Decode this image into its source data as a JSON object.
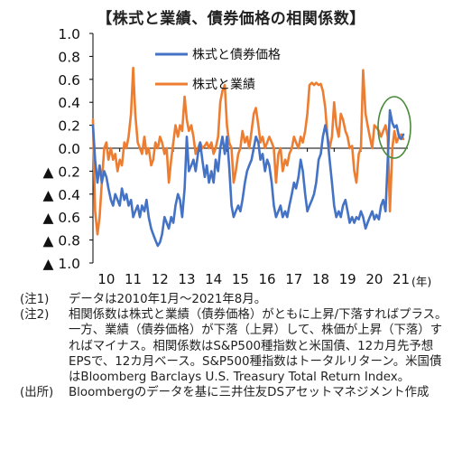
{
  "title": "【株式と業績、債券価格の相関係数】",
  "colors": {
    "bond_series": "#4472C4",
    "earnings_series": "#ED7D31",
    "highlight_circle": "#4A8A3C",
    "axis": "#000000"
  },
  "chart_data": {
    "type": "line",
    "title": "【株式と業績、債券価格の相関係数】",
    "xlabel": "",
    "x_unit": "(年)",
    "ylabel": "",
    "ylim": [
      -1.0,
      1.0
    ],
    "xlim": [
      2010,
      2021.75
    ],
    "grid": false,
    "legend_position": "top-right",
    "y_tick_labels": [
      "1.0",
      "0.8",
      "0.6",
      "0.4",
      "0.2",
      "0.0",
      "▲ 0.2",
      "▲ 0.4",
      "▲ 0.6",
      "▲ 0.8",
      "▲ 1.0"
    ],
    "y_tick_values": [
      1.0,
      0.8,
      0.6,
      0.4,
      0.2,
      0.0,
      -0.2,
      -0.4,
      -0.6,
      -0.8,
      -1.0
    ],
    "x_tick_labels": [
      "10",
      "11",
      "12",
      "13",
      "14",
      "15",
      "16",
      "17",
      "18",
      "19",
      "20",
      "21"
    ],
    "x_tick_values": [
      2010.5,
      2011.5,
      2012.5,
      2013.5,
      2014.5,
      2015.5,
      2016.5,
      2017.5,
      2018.5,
      2019.5,
      2020.5,
      2021.5
    ],
    "annotation": "2021年直近の値を楕円で強調",
    "series": [
      {
        "name": "株式と債券価格",
        "color": "#4472C4",
        "points": [
          [
            2010.0,
            0.2
          ],
          [
            2010.08,
            -0.1
          ],
          [
            2010.17,
            -0.3
          ],
          [
            2010.25,
            -0.15
          ],
          [
            2010.33,
            -0.3
          ],
          [
            2010.42,
            -0.2
          ],
          [
            2010.5,
            -0.25
          ],
          [
            2010.58,
            -0.35
          ],
          [
            2010.67,
            -0.45
          ],
          [
            2010.75,
            -0.5
          ],
          [
            2010.83,
            -0.4
          ],
          [
            2010.92,
            -0.45
          ],
          [
            2011.0,
            -0.5
          ],
          [
            2011.08,
            -0.35
          ],
          [
            2011.17,
            -0.45
          ],
          [
            2011.25,
            -0.4
          ],
          [
            2011.33,
            -0.5
          ],
          [
            2011.42,
            -0.45
          ],
          [
            2011.5,
            -0.6
          ],
          [
            2011.58,
            -0.55
          ],
          [
            2011.67,
            -0.5
          ],
          [
            2011.75,
            -0.6
          ],
          [
            2011.83,
            -0.5
          ],
          [
            2011.92,
            -0.55
          ],
          [
            2012.0,
            -0.45
          ],
          [
            2012.08,
            -0.6
          ],
          [
            2012.17,
            -0.7
          ],
          [
            2012.25,
            -0.75
          ],
          [
            2012.33,
            -0.8
          ],
          [
            2012.42,
            -0.85
          ],
          [
            2012.5,
            -0.82
          ],
          [
            2012.58,
            -0.75
          ],
          [
            2012.67,
            -0.6
          ],
          [
            2012.75,
            -0.65
          ],
          [
            2012.83,
            -0.7
          ],
          [
            2012.92,
            -0.6
          ],
          [
            2013.0,
            -0.65
          ],
          [
            2013.08,
            -0.5
          ],
          [
            2013.17,
            -0.4
          ],
          [
            2013.25,
            -0.45
          ],
          [
            2013.33,
            -0.6
          ],
          [
            2013.42,
            -0.35
          ],
          [
            2013.5,
            0.1
          ],
          [
            2013.58,
            -0.2
          ],
          [
            2013.67,
            -0.15
          ],
          [
            2013.75,
            -0.1
          ],
          [
            2013.83,
            -0.2
          ],
          [
            2013.92,
            -0.05
          ],
          [
            2014.0,
            0.05
          ],
          [
            2014.08,
            -0.1
          ],
          [
            2014.17,
            -0.25
          ],
          [
            2014.25,
            -0.15
          ],
          [
            2014.33,
            -0.3
          ],
          [
            2014.42,
            -0.2
          ],
          [
            2014.5,
            -0.3
          ],
          [
            2014.58,
            -0.1
          ],
          [
            2014.67,
            -0.2
          ],
          [
            2014.75,
            0.0
          ],
          [
            2014.83,
            0.1
          ],
          [
            2014.92,
            -0.05
          ],
          [
            2015.0,
            0.1
          ],
          [
            2015.08,
            -0.15
          ],
          [
            2015.17,
            -0.5
          ],
          [
            2015.25,
            -0.6
          ],
          [
            2015.33,
            -0.55
          ],
          [
            2015.42,
            -0.5
          ],
          [
            2015.5,
            -0.55
          ],
          [
            2015.58,
            -0.45
          ],
          [
            2015.67,
            -0.3
          ],
          [
            2015.75,
            -0.2
          ],
          [
            2015.83,
            -0.15
          ],
          [
            2015.92,
            -0.1
          ],
          [
            2016.0,
            0.0
          ],
          [
            2016.08,
            0.1
          ],
          [
            2016.17,
            0.05
          ],
          [
            2016.25,
            -0.1
          ],
          [
            2016.33,
            -0.05
          ],
          [
            2016.42,
            -0.2
          ],
          [
            2016.5,
            -0.1
          ],
          [
            2016.58,
            -0.15
          ],
          [
            2016.67,
            -0.3
          ],
          [
            2016.75,
            -0.5
          ],
          [
            2016.83,
            -0.6
          ],
          [
            2016.92,
            -0.55
          ],
          [
            2017.0,
            -0.5
          ],
          [
            2017.08,
            -0.6
          ],
          [
            2017.17,
            -0.55
          ],
          [
            2017.25,
            -0.6
          ],
          [
            2017.33,
            -0.5
          ],
          [
            2017.42,
            -0.4
          ],
          [
            2017.5,
            -0.3
          ],
          [
            2017.58,
            -0.35
          ],
          [
            2017.67,
            -0.25
          ],
          [
            2017.75,
            -0.1
          ],
          [
            2017.83,
            -0.2
          ],
          [
            2017.92,
            -0.4
          ],
          [
            2018.0,
            -0.55
          ],
          [
            2018.08,
            -0.5
          ],
          [
            2018.17,
            -0.45
          ],
          [
            2018.25,
            -0.4
          ],
          [
            2018.33,
            -0.3
          ],
          [
            2018.42,
            -0.1
          ],
          [
            2018.5,
            -0.05
          ],
          [
            2018.58,
            0.1
          ],
          [
            2018.67,
            0.2
          ],
          [
            2018.75,
            0.1
          ],
          [
            2018.83,
            -0.1
          ],
          [
            2018.92,
            -0.3
          ],
          [
            2019.0,
            -0.5
          ],
          [
            2019.08,
            -0.6
          ],
          [
            2019.17,
            -0.55
          ],
          [
            2019.25,
            -0.6
          ],
          [
            2019.33,
            -0.5
          ],
          [
            2019.42,
            -0.45
          ],
          [
            2019.5,
            -0.55
          ],
          [
            2019.58,
            -0.65
          ],
          [
            2019.67,
            -0.6
          ],
          [
            2019.75,
            -0.65
          ],
          [
            2019.83,
            -0.6
          ],
          [
            2019.92,
            -0.62
          ],
          [
            2020.0,
            -0.55
          ],
          [
            2020.08,
            -0.6
          ],
          [
            2020.17,
            -0.7
          ],
          [
            2020.25,
            -0.65
          ],
          [
            2020.33,
            -0.6
          ],
          [
            2020.42,
            -0.55
          ],
          [
            2020.5,
            -0.62
          ],
          [
            2020.58,
            -0.58
          ],
          [
            2020.67,
            -0.62
          ],
          [
            2020.75,
            -0.5
          ],
          [
            2020.83,
            -0.45
          ],
          [
            2020.92,
            -0.55
          ],
          [
            2021.0,
            -0.1
          ],
          [
            2021.08,
            0.33
          ],
          [
            2021.17,
            0.22
          ],
          [
            2021.25,
            0.18
          ],
          [
            2021.33,
            0.2
          ],
          [
            2021.42,
            0.1
          ],
          [
            2021.5,
            0.08
          ],
          [
            2021.58,
            0.12
          ]
        ]
      },
      {
        "name": "株式と業績",
        "color": "#ED7D31",
        "points": [
          [
            2010.0,
            0.25
          ],
          [
            2010.08,
            -0.55
          ],
          [
            2010.17,
            -0.75
          ],
          [
            2010.25,
            -0.6
          ],
          [
            2010.33,
            -0.3
          ],
          [
            2010.42,
            0.0
          ],
          [
            2010.5,
            0.05
          ],
          [
            2010.58,
            -0.1
          ],
          [
            2010.67,
            0.0
          ],
          [
            2010.75,
            -0.1
          ],
          [
            2010.83,
            -0.05
          ],
          [
            2010.92,
            -0.2
          ],
          [
            2011.0,
            -0.1
          ],
          [
            2011.08,
            -0.15
          ],
          [
            2011.17,
            0.05
          ],
          [
            2011.25,
            0.0
          ],
          [
            2011.33,
            0.1
          ],
          [
            2011.42,
            0.3
          ],
          [
            2011.5,
            0.7
          ],
          [
            2011.58,
            0.3
          ],
          [
            2011.67,
            0.05
          ],
          [
            2011.75,
            0.0
          ],
          [
            2011.83,
            -0.05
          ],
          [
            2011.92,
            0.1
          ],
          [
            2012.0,
            -0.05
          ],
          [
            2012.08,
            0.0
          ],
          [
            2012.17,
            -0.15
          ],
          [
            2012.25,
            -0.1
          ],
          [
            2012.33,
            0.05
          ],
          [
            2012.42,
            0.0
          ],
          [
            2012.5,
            0.1
          ],
          [
            2012.58,
            0.05
          ],
          [
            2012.67,
            -0.05
          ],
          [
            2012.75,
            0.0
          ],
          [
            2012.83,
            -0.3
          ],
          [
            2012.92,
            -0.1
          ],
          [
            2013.0,
            0.05
          ],
          [
            2013.08,
            0.2
          ],
          [
            2013.17,
            0.1
          ],
          [
            2013.25,
            0.2
          ],
          [
            2013.33,
            0.15
          ],
          [
            2013.42,
            0.45
          ],
          [
            2013.5,
            0.25
          ],
          [
            2013.58,
            0.15
          ],
          [
            2013.67,
            0.2
          ],
          [
            2013.75,
            0.1
          ],
          [
            2013.83,
            -0.05
          ],
          [
            2013.92,
            0.0
          ],
          [
            2014.0,
            0.05
          ],
          [
            2014.08,
            0.0
          ],
          [
            2014.17,
            0.02
          ],
          [
            2014.25,
            0.05
          ],
          [
            2014.33,
            0.0
          ],
          [
            2014.42,
            0.05
          ],
          [
            2014.5,
            -0.05
          ],
          [
            2014.58,
            0.0
          ],
          [
            2014.67,
            0.1
          ],
          [
            2014.75,
            0.4
          ],
          [
            2014.83,
            0.5
          ],
          [
            2014.92,
            0.55
          ],
          [
            2015.0,
            0.2
          ],
          [
            2015.08,
            0.05
          ],
          [
            2015.17,
            0.0
          ],
          [
            2015.25,
            -0.3
          ],
          [
            2015.33,
            -0.2
          ],
          [
            2015.42,
            -0.05
          ],
          [
            2015.5,
            0.0
          ],
          [
            2015.58,
            0.15
          ],
          [
            2015.67,
            0.05
          ],
          [
            2015.75,
            0.1
          ],
          [
            2015.83,
            0.0
          ],
          [
            2015.92,
            0.15
          ],
          [
            2016.0,
            0.3
          ],
          [
            2016.08,
            0.35
          ],
          [
            2016.17,
            0.2
          ],
          [
            2016.25,
            0.05
          ],
          [
            2016.33,
            0.1
          ],
          [
            2016.42,
            0.0
          ],
          [
            2016.5,
            0.05
          ],
          [
            2016.58,
            0.1
          ],
          [
            2016.67,
            0.05
          ],
          [
            2016.75,
            0.0
          ],
          [
            2016.83,
            -0.3
          ],
          [
            2016.92,
            -0.05
          ],
          [
            2017.0,
            0.0
          ],
          [
            2017.08,
            -0.2
          ],
          [
            2017.17,
            -0.1
          ],
          [
            2017.25,
            -0.15
          ],
          [
            2017.33,
            -0.05
          ],
          [
            2017.42,
            0.0
          ],
          [
            2017.5,
            0.1
          ],
          [
            2017.58,
            0.05
          ],
          [
            2017.67,
            0.0
          ],
          [
            2017.75,
            0.1
          ],
          [
            2017.83,
            0.05
          ],
          [
            2017.92,
            0.15
          ],
          [
            2018.0,
            0.3
          ],
          [
            2018.08,
            0.55
          ],
          [
            2018.17,
            0.57
          ],
          [
            2018.25,
            0.55
          ],
          [
            2018.33,
            0.57
          ],
          [
            2018.42,
            0.55
          ],
          [
            2018.5,
            0.56
          ],
          [
            2018.58,
            0.5
          ],
          [
            2018.67,
            0.35
          ],
          [
            2018.75,
            0.1
          ],
          [
            2018.83,
            0.0
          ],
          [
            2018.92,
            0.1
          ],
          [
            2019.0,
            0.4
          ],
          [
            2019.08,
            0.2
          ],
          [
            2019.17,
            0.1
          ],
          [
            2019.25,
            0.3
          ],
          [
            2019.33,
            0.25
          ],
          [
            2019.42,
            0.15
          ],
          [
            2019.5,
            0.1
          ],
          [
            2019.58,
            0.0
          ],
          [
            2019.67,
            0.02
          ],
          [
            2019.75,
            -0.2
          ],
          [
            2019.83,
            -0.3
          ],
          [
            2019.92,
            -0.05
          ],
          [
            2020.0,
            0.0
          ],
          [
            2020.08,
            0.68
          ],
          [
            2020.17,
            0.3
          ],
          [
            2020.25,
            0.2
          ],
          [
            2020.33,
            0.1
          ],
          [
            2020.42,
            0.0
          ],
          [
            2020.5,
            0.2
          ],
          [
            2020.58,
            0.18
          ],
          [
            2020.67,
            0.15
          ],
          [
            2020.75,
            0.1
          ],
          [
            2020.83,
            0.15
          ],
          [
            2020.92,
            0.2
          ],
          [
            2021.0,
            0.1
          ],
          [
            2021.08,
            -0.55
          ],
          [
            2021.17,
            0.0
          ],
          [
            2021.25,
            0.15
          ],
          [
            2021.33,
            0.05
          ],
          [
            2021.42,
            0.1
          ],
          [
            2021.5,
            0.12
          ],
          [
            2021.58,
            0.08
          ]
        ]
      }
    ]
  },
  "notes": [
    {
      "label": "(注1)",
      "text": "データは2010年1月～2021年8月。"
    },
    {
      "label": "(注2)",
      "text": "相関係数は株式と業績（債券価格）がともに上昇/下落すればプラス。一方、業績（債券価格）が下落（上昇）して、株価が上昇（下落）すればマイナス。相関係数はS&P500種指数と米国債、12カ月先予想EPSで、12カ月ベース。S&P500種指数はトータルリターン。米国債はBloomberg Barclays U.S. Treasury Total Return Index。"
    },
    {
      "label": "(出所)",
      "text": "Bloombergのデータを基に三井住友DSアセットマネジメント作成"
    }
  ]
}
